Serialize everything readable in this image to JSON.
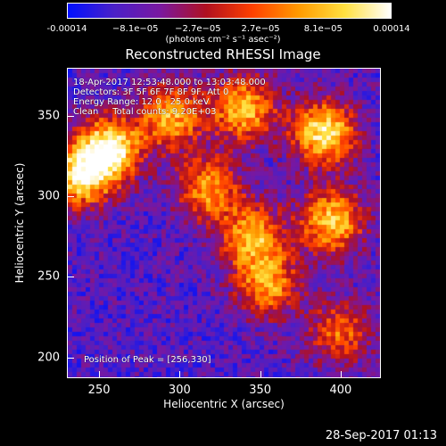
{
  "colorbar": {
    "tick_labels": [
      "-0.00014",
      "−8.1e−05",
      "−2.7e−05",
      "2.7e−05",
      "8.1e−05",
      "0.00014"
    ],
    "units": "(photons cm⁻² s⁻¹ asec⁻²)",
    "colors": [
      "#0010ff",
      "#4a20c8",
      "#7a18a0",
      "#b01020",
      "#ff4000",
      "#ff9a00",
      "#ffe040",
      "#ffffff"
    ]
  },
  "title": "Reconstructed RHESSI Image",
  "info": {
    "time": "18-Apr-2017 12:53:48.000 to 13:03:48.000",
    "detectors": "Detectors: 3F 5F 6F 7F 8F 9F, Att 0",
    "energy": "Energy Range: 12.0 - 25.0 keV",
    "clean": "Clean     Total counts: 9.20E+03",
    "peak": "Position of Peak = [256,330]"
  },
  "axes": {
    "x_ticks": [
      "250",
      "300",
      "350",
      "400"
    ],
    "y_ticks": [
      "350",
      "300",
      "250",
      "200"
    ],
    "xlabel": "Heliocentric X (arcsec)",
    "ylabel": "Heliocentric Y (arcsec)"
  },
  "timestamp": "28-Sep-2017 01:13",
  "chart_data": {
    "type": "heatmap",
    "title": "Reconstructed RHESSI Image",
    "xlabel": "Heliocentric X (arcsec)",
    "ylabel": "Heliocentric Y (arcsec)",
    "xlim": [
      230,
      425
    ],
    "ylim": [
      187,
      380
    ],
    "x_ticks": [
      250,
      300,
      350,
      400
    ],
    "y_ticks": [
      200,
      250,
      300,
      350
    ],
    "colorbar_range": [
      -0.00014,
      0.00014
    ],
    "colorbar_ticks": [
      -0.00014,
      -8.1e-05,
      -2.7e-05,
      2.7e-05,
      8.1e-05,
      0.00014
    ],
    "peak_position": [
      256,
      330
    ],
    "total_counts": 9200,
    "energy_range_keV": [
      12.0,
      25.0
    ],
    "bright_regions": [
      {
        "x": 256,
        "y": 330,
        "relative_intensity": 1.0
      },
      {
        "x": 238,
        "y": 313,
        "relative_intensity": 0.9
      },
      {
        "x": 295,
        "y": 350,
        "relative_intensity": 0.75
      },
      {
        "x": 340,
        "y": 355,
        "relative_intensity": 0.8
      },
      {
        "x": 390,
        "y": 340,
        "relative_intensity": 0.95
      },
      {
        "x": 318,
        "y": 305,
        "relative_intensity": 0.7
      },
      {
        "x": 345,
        "y": 275,
        "relative_intensity": 0.75
      },
      {
        "x": 395,
        "y": 285,
        "relative_intensity": 0.85
      },
      {
        "x": 355,
        "y": 245,
        "relative_intensity": 0.7
      },
      {
        "x": 400,
        "y": 215,
        "relative_intensity": 0.55
      }
    ]
  }
}
